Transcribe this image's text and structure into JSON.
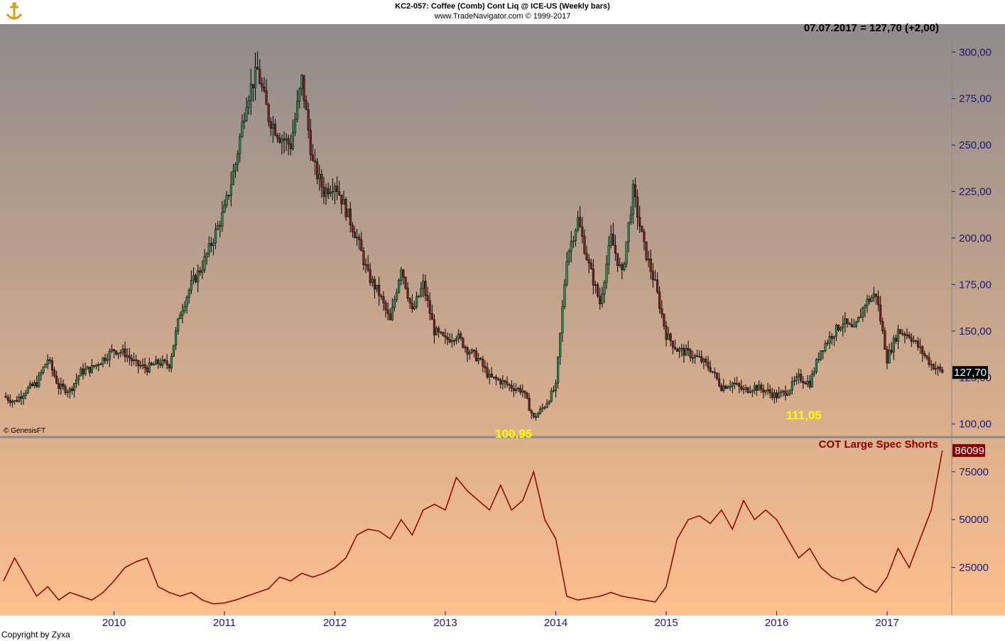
{
  "header": {
    "title": "KC2-057:  Coffee (Comb) Cont Liq @ ICE-US  (Weekly bars)",
    "subtitle": "www.TradeNavigator.com © 1999-2017",
    "price_info": "07.07.2017 = 127,70 (+2,00)"
  },
  "footer": {
    "copyright": "Copyright by Zyxa",
    "genesis": "© GenesisFT"
  },
  "colors": {
    "background_top": "#8f8b8b",
    "background_bottom": "#fec08e",
    "cot_line": "#8b0000",
    "price_axis_text": "#191970",
    "annotation": "#ffff00"
  },
  "chart_data": [
    {
      "type": "candlestick",
      "title": "Coffee (Comb) Cont Liq @ ICE-US (Weekly bars)",
      "x_tick_labels": [
        "2010",
        "2011",
        "2012",
        "2013",
        "2014",
        "2015",
        "2016",
        "2017"
      ],
      "y_ticks": [
        100,
        125,
        150,
        175,
        200,
        225,
        250,
        275,
        300
      ],
      "y_tick_labels": [
        "100,00",
        "125,00",
        "150,00",
        "175,00",
        "200,00",
        "225,00",
        "250,00",
        "275,00",
        "300,00"
      ],
      "ylim": [
        93,
        315
      ],
      "last_value": 127.7,
      "last_value_label": "127,70",
      "annotations": [
        {
          "label": "100,95",
          "date": 2013.85,
          "value": 100.95
        },
        {
          "label": "111,05",
          "date": 2016.02,
          "value": 111.05
        }
      ],
      "series": [
        {
          "x": [
            2009.0,
            2009.1,
            2009.2,
            2009.3,
            2009.4,
            2009.5,
            2009.6,
            2009.7,
            2009.8,
            2009.9,
            2010.0,
            2010.1,
            2010.2,
            2010.3,
            2010.4,
            2010.5,
            2010.6,
            2010.7,
            2010.8,
            2010.9,
            2011.0,
            2011.1,
            2011.2,
            2011.3,
            2011.4,
            2011.5,
            2011.6,
            2011.7,
            2011.8,
            2011.9,
            2012.0,
            2012.1,
            2012.2,
            2012.3,
            2012.4,
            2012.5,
            2012.6,
            2012.7,
            2012.8,
            2012.9,
            2013.0,
            2013.1,
            2013.2,
            2013.3,
            2013.4,
            2013.5,
            2013.6,
            2013.7,
            2013.8,
            2013.9,
            2014.0,
            2014.1,
            2014.2,
            2014.3,
            2014.4,
            2014.5,
            2014.6,
            2014.7,
            2014.8,
            2014.9,
            2015.0,
            2015.1,
            2015.2,
            2015.3,
            2015.4,
            2015.5,
            2015.6,
            2015.7,
            2015.8,
            2015.9,
            2016.0,
            2016.1,
            2016.2,
            2016.3,
            2016.4,
            2016.5,
            2016.6,
            2016.7,
            2016.8,
            2016.9,
            2017.0,
            2017.1,
            2017.2,
            2017.3,
            2017.4,
            2017.5
          ],
          "close": [
            115,
            112,
            118,
            122,
            135,
            120,
            118,
            128,
            130,
            135,
            140,
            138,
            132,
            130,
            133,
            132,
            160,
            175,
            185,
            200,
            215,
            240,
            275,
            290,
            265,
            255,
            250,
            285,
            240,
            225,
            230,
            215,
            200,
            180,
            170,
            155,
            185,
            160,
            175,
            150,
            145,
            148,
            140,
            135,
            125,
            123,
            120,
            118,
            103,
            110,
            120,
            190,
            210,
            185,
            165,
            200,
            180,
            225,
            195,
            175,
            148,
            140,
            138,
            135,
            130,
            120,
            122,
            118,
            120,
            118,
            115,
            118,
            125,
            122,
            140,
            148,
            155,
            150,
            165,
            170,
            135,
            150,
            148,
            140,
            132,
            127.7
          ]
        }
      ]
    },
    {
      "type": "line",
      "title": "COT Large Spec Shorts",
      "legend": "COT Large Spec Shorts",
      "y_ticks": [
        25000,
        50000,
        75000
      ],
      "y_tick_labels": [
        "25000",
        "50000",
        "75000"
      ],
      "ylim": [
        0,
        92000
      ],
      "last_value": 86099,
      "last_value_label": "86099",
      "series": [
        {
          "name": "COT Large Spec Shorts",
          "x": [
            2009.0,
            2009.1,
            2009.2,
            2009.3,
            2009.4,
            2009.5,
            2009.6,
            2009.7,
            2009.8,
            2009.9,
            2010.0,
            2010.1,
            2010.2,
            2010.3,
            2010.4,
            2010.5,
            2010.6,
            2010.7,
            2010.8,
            2010.9,
            2011.0,
            2011.1,
            2011.2,
            2011.3,
            2011.4,
            2011.5,
            2011.6,
            2011.7,
            2011.8,
            2011.9,
            2012.0,
            2012.1,
            2012.2,
            2012.3,
            2012.4,
            2012.5,
            2012.6,
            2012.7,
            2012.8,
            2012.9,
            2013.0,
            2013.1,
            2013.2,
            2013.3,
            2013.4,
            2013.5,
            2013.6,
            2013.7,
            2013.8,
            2013.9,
            2014.0,
            2014.1,
            2014.2,
            2014.3,
            2014.4,
            2014.5,
            2014.6,
            2014.7,
            2014.8,
            2014.9,
            2015.0,
            2015.1,
            2015.2,
            2015.3,
            2015.4,
            2015.5,
            2015.6,
            2015.7,
            2015.8,
            2015.9,
            2016.0,
            2016.1,
            2016.2,
            2016.3,
            2016.4,
            2016.5,
            2016.6,
            2016.7,
            2016.8,
            2016.9,
            2017.0,
            2017.1,
            2017.2,
            2017.3,
            2017.4,
            2017.5
          ],
          "values": [
            18000,
            30000,
            20000,
            10000,
            15000,
            8000,
            12000,
            10000,
            8000,
            12000,
            18000,
            25000,
            28000,
            30000,
            15000,
            12000,
            10000,
            12000,
            8000,
            6000,
            6500,
            8000,
            10000,
            12000,
            14000,
            20000,
            18000,
            22000,
            20000,
            22000,
            25000,
            30000,
            42000,
            45000,
            44000,
            40000,
            50000,
            42000,
            55000,
            58000,
            55000,
            72000,
            65000,
            60000,
            55000,
            68000,
            55000,
            60000,
            75000,
            50000,
            40000,
            10000,
            8000,
            9000,
            10000,
            12000,
            10000,
            9000,
            8000,
            7000,
            15000,
            40000,
            50000,
            52000,
            48000,
            55000,
            45000,
            60000,
            50000,
            55000,
            50000,
            40000,
            30000,
            35000,
            25000,
            20000,
            18000,
            20000,
            15000,
            12000,
            20000,
            35000,
            25000,
            40000,
            55000,
            86099
          ]
        }
      ]
    }
  ]
}
